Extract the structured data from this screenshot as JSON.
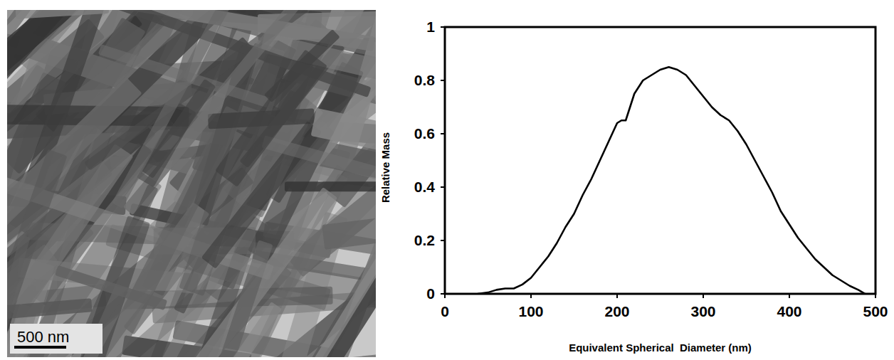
{
  "chart_data": {
    "type": "line",
    "x_label": "Equivalent Spherical  Diameter (nm)",
    "y_label": "Relative Mass",
    "x": [
      38,
      50,
      60,
      70,
      80,
      90,
      100,
      110,
      120,
      130,
      140,
      150,
      160,
      170,
      180,
      190,
      200,
      205,
      210,
      215,
      220,
      230,
      240,
      250,
      260,
      270,
      280,
      290,
      300,
      310,
      320,
      330,
      340,
      350,
      360,
      370,
      380,
      390,
      400,
      410,
      420,
      430,
      440,
      450,
      460,
      470,
      480,
      488
    ],
    "values": [
      0,
      0.005,
      0.015,
      0.02,
      0.02,
      0.035,
      0.06,
      0.1,
      0.14,
      0.19,
      0.25,
      0.3,
      0.37,
      0.43,
      0.5,
      0.57,
      0.64,
      0.65,
      0.65,
      0.7,
      0.75,
      0.8,
      0.82,
      0.84,
      0.85,
      0.84,
      0.82,
      0.78,
      0.74,
      0.7,
      0.67,
      0.65,
      0.61,
      0.56,
      0.5,
      0.44,
      0.38,
      0.31,
      0.26,
      0.21,
      0.17,
      0.13,
      0.1,
      0.07,
      0.05,
      0.03,
      0.015,
      0
    ],
    "color": "#000000",
    "xlim": [
      0,
      500
    ],
    "xticks": [
      0,
      100,
      200,
      300,
      400,
      500
    ],
    "ylim": [
      0,
      1
    ],
    "yticks": [
      0,
      0.2,
      0.4,
      0.6,
      0.8,
      1
    ],
    "grid": false
  },
  "image": {
    "scale_bar": "500 nm"
  }
}
